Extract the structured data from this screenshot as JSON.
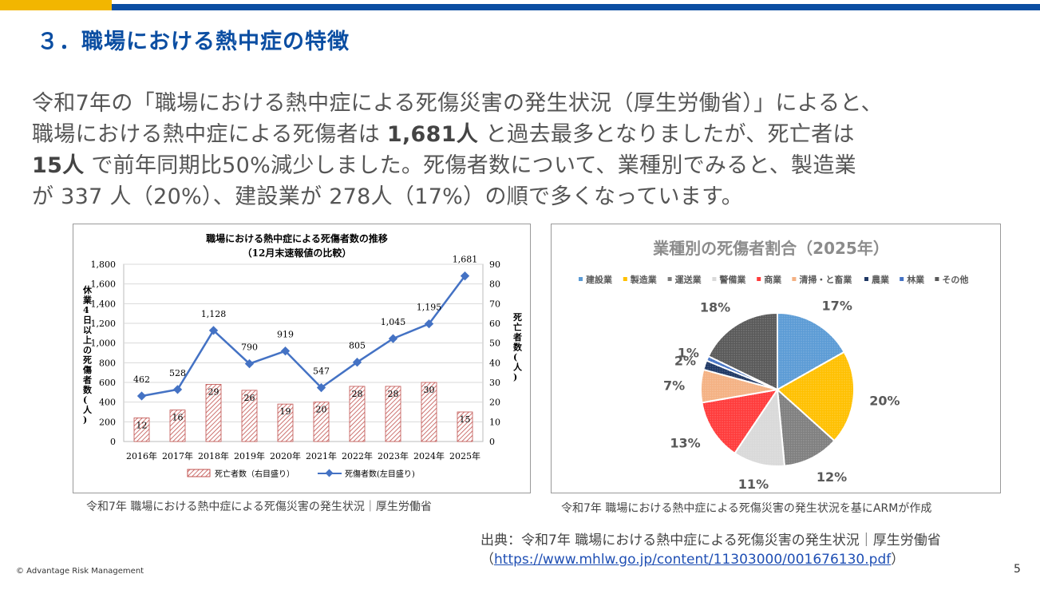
{
  "header": {
    "title": "３．職場における熱中症の特徴"
  },
  "intro": {
    "line1": "令和7年の「職場における熱中症による死傷災害の発生状況（厚生労働省）」によると、",
    "line2a": "職場における熱中症による死傷者は ",
    "line2b": "1,681人",
    "line2c": " と過去最多となりましたが、死亡者は",
    "line3a": "15人",
    "line3b": " で前年同期比50%減少しました。死傷者数について、業種別でみると、製造業",
    "line4": "が 337 人（20%）、建設業が 278人（17%）の順で多くなっています。"
  },
  "chart_data": [
    {
      "type": "bar+line",
      "title": "職場における熱中症による死傷者数の推移",
      "subtitle": "（12月末速報値の比較）",
      "categories": [
        "2016年",
        "2017年",
        "2018年",
        "2019年",
        "2020年",
        "2021年",
        "2022年",
        "2023年",
        "2024年",
        "2025年"
      ],
      "series": [
        {
          "name": "死亡者数（右目盛り）",
          "kind": "bar",
          "axis": "right",
          "values": [
            12,
            16,
            29,
            26,
            19,
            20,
            28,
            28,
            30,
            15
          ]
        },
        {
          "name": "死傷者数(左目盛り)",
          "kind": "line",
          "axis": "left",
          "values": [
            462,
            528,
            1128,
            790,
            919,
            547,
            805,
            1045,
            1195,
            1681
          ],
          "labels": [
            "462",
            "528",
            "1,128",
            "790",
            "919",
            "547",
            "805",
            "1,045",
            "1,195",
            "1,681"
          ]
        }
      ],
      "ylabel_left": "休業4日以上の死傷者数(人)",
      "ylabel_right": "死亡者数(人)",
      "ylim_left": [
        0,
        1800
      ],
      "ylim_right": [
        0,
        90
      ],
      "left_ticks": [
        "0",
        "200",
        "400",
        "600",
        "800",
        "1,000",
        "1,200",
        "1,400",
        "1,600",
        "1,800"
      ],
      "right_ticks": [
        "0",
        "10",
        "20",
        "30",
        "40",
        "50",
        "60",
        "70",
        "80",
        "90"
      ],
      "caption": "令和7年 職場における熱中症による死傷災害の発生状況｜厚生労働省"
    },
    {
      "type": "pie",
      "title": "業種別の死傷者割合（2025年）",
      "legend": [
        "建設業",
        "製造業",
        "運送業",
        "警備業",
        "商業",
        "清掃・と畜業",
        "農業",
        "林業",
        "その他"
      ],
      "slices": [
        {
          "name": "建設業",
          "value": 17,
          "label": "17%",
          "color": "#5b9bd5"
        },
        {
          "name": "製造業",
          "value": 20,
          "label": "20%",
          "color": "#ffc000"
        },
        {
          "name": "運送業",
          "value": 12,
          "label": "12%",
          "color": "#7f7f7f"
        },
        {
          "name": "警備業",
          "value": 11,
          "label": "11%",
          "color": "#d9d9d9"
        },
        {
          "name": "商業",
          "value": 13,
          "label": "13%",
          "color": "#ff3b3b"
        },
        {
          "name": "清掃・と畜業",
          "value": 7,
          "label": "7%",
          "color": "#f4b183"
        },
        {
          "name": "農業",
          "value": 2,
          "label": "2%",
          "color": "#1f3864"
        },
        {
          "name": "林業",
          "value": 1,
          "label": "1%",
          "color": "#4472c4"
        },
        {
          "name": "その他",
          "value": 18,
          "label": "18%",
          "color": "#595959"
        }
      ],
      "caption": "令和7年 職場における熱中症による死傷災害の発生状況を基にARMが作成"
    }
  ],
  "source": {
    "text": "出典：令和7年 職場における熱中症による死傷災害の発生状況｜厚生労働省",
    "link_open": "（",
    "link": "https://www.mhlw.go.jp/content/11303000/001676130.pdf",
    "link_close": "）"
  },
  "footer": {
    "copyright": "© Advantage Risk Management",
    "page": "5"
  },
  "colors": {
    "accent_blue": "#0b4ea2",
    "accent_yellow": "#f2b600",
    "line_blue": "#4472c4",
    "bar_red": "#c0504d"
  }
}
